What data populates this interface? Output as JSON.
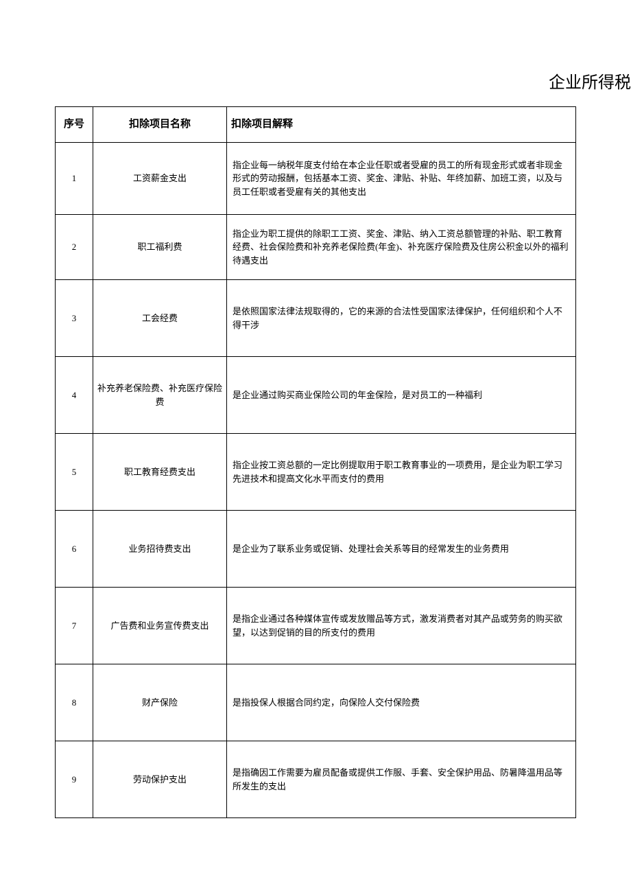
{
  "title": "企业所得税",
  "columns": {
    "seq": "序号",
    "name": "扣除项目名称",
    "explain": "扣除项目解释"
  },
  "rows": [
    {
      "seq": "1",
      "name": "工资薪金支出",
      "explain": "指企业每一纳税年度支付给在本企业任职或者受雇的员工的所有现金形式或者非现金形式的劳动报酬，包括基本工资、奖金、津贴、补贴、年终加薪、加班工资，以及与员工任职或者受雇有关的其他支出"
    },
    {
      "seq": "2",
      "name": "职工福利费",
      "explain": "指企业为职工提供的除职工工资、奖金、津贴、纳入工资总额管理的补贴、职工教育经费、社会保险费和补充养老保险费(年金)、补充医疗保险费及住房公积金以外的福利待遇支出"
    },
    {
      "seq": "3",
      "name": "工会经费",
      "explain": "是依照国家法律法规取得的，它的来源的合法性受国家法律保护，任何组织和个人不得干涉"
    },
    {
      "seq": "4",
      "name": "补充养老保险费、补充医疗保险费",
      "explain": "是企业通过购买商业保险公司的年金保险，是对员工的一种福利"
    },
    {
      "seq": "5",
      "name": "职工教育经费支出",
      "explain": "指企业按工资总额的一定比例提取用于职工教育事业的一项费用，是企业为职工学习先进技术和提高文化水平而支付的费用"
    },
    {
      "seq": "6",
      "name": "业务招待费支出",
      "explain": "是企业为了联系业务或促销、处理社会关系等目的经常发生的业务费用"
    },
    {
      "seq": "7",
      "name": "广告费和业务宣传费支出",
      "explain": "是指企业通过各种媒体宣传或发放赠品等方式，激发消费者对其产品或劳务的购买欲望，以达到促销的目的所支付的费用"
    },
    {
      "seq": "8",
      "name": "财产保险",
      "explain": "是指投保人根据合同约定，向保险人交付保险费"
    },
    {
      "seq": "9",
      "name": "劳动保护支出",
      "explain": "是指确因工作需要为雇员配备或提供工作服、手套、安全保护用品、防暑降温用品等所发生的支出"
    }
  ]
}
